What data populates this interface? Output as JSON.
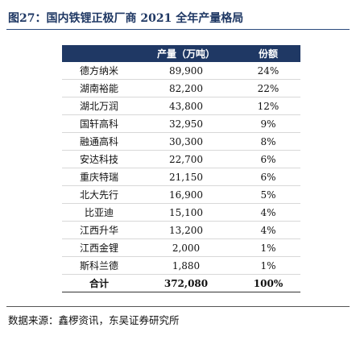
{
  "figure": {
    "title": "图27：国内铁锂正极厂商 2021 全年产量格局",
    "source": "数据来源：鑫椤资讯，东吴证券研究所"
  },
  "table": {
    "headers": [
      "",
      "产量（万吨）",
      "份额"
    ],
    "rows": [
      {
        "name": "德方纳米",
        "output": "89,900",
        "share": "24%"
      },
      {
        "name": "湖南裕能",
        "output": "82,200",
        "share": "22%"
      },
      {
        "name": "湖北万润",
        "output": "43,800",
        "share": "12%"
      },
      {
        "name": "国轩高科",
        "output": "32,950",
        "share": "9%"
      },
      {
        "name": "融通高科",
        "output": "30,300",
        "share": "8%"
      },
      {
        "name": "安达科技",
        "output": "22,700",
        "share": "6%"
      },
      {
        "name": "重庆特瑞",
        "output": "21,150",
        "share": "6%"
      },
      {
        "name": "北大先行",
        "output": "16,900",
        "share": "5%"
      },
      {
        "name": "比亚迪",
        "output": "15,100",
        "share": "4%"
      },
      {
        "name": "江西升华",
        "output": "13,200",
        "share": "4%"
      },
      {
        "name": "江西金锂",
        "output": "2,000",
        "share": "1%"
      },
      {
        "name": "斯科兰德",
        "output": "1,880",
        "share": "1%"
      }
    ],
    "total": {
      "name": "合计",
      "output": "372,080",
      "share": "100%"
    }
  }
}
